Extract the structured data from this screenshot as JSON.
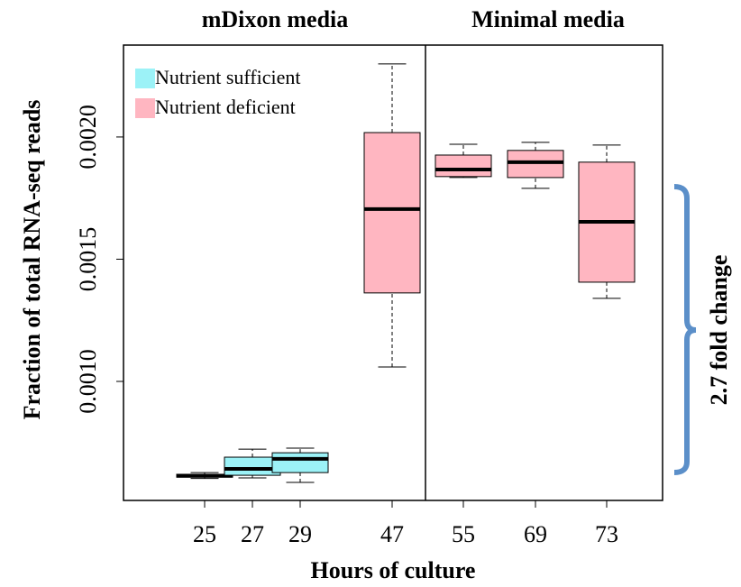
{
  "chart_data": {
    "type": "box",
    "panel_labels": [
      "mDixon media",
      "Minimal media"
    ],
    "x_label": "Hours of culture",
    "y_label": "Fraction of total RNA-seq reads",
    "annotation": "2.7 fold change",
    "categories": [
      "25",
      "27",
      "29",
      "47",
      "55",
      "69",
      "73"
    ],
    "series": [
      {
        "name": "Nutrient sufficient",
        "color": "#9cf2f7",
        "boxes": [
          [
            0.000603,
            0.000608,
            0.000614,
            0.00062,
            0.000627
          ],
          [
            0.000605,
            0.000616,
            0.000642,
            0.00069,
            0.000723
          ],
          [
            0.000587,
            0.000627,
            0.000683,
            0.000708,
            0.000727
          ],
          null,
          null,
          null,
          null
        ]
      },
      {
        "name": "Nutrient deficient",
        "color": "#ffb6c1",
        "boxes": [
          null,
          null,
          null,
          [
            0.001059,
            0.001362,
            0.001705,
            0.002018,
            0.002299
          ],
          [
            0.001834,
            0.001838,
            0.001867,
            0.001926,
            0.00197
          ],
          [
            0.00179,
            0.001834,
            0.001897,
            0.001945,
            0.001978
          ],
          [
            0.00134,
            0.001406,
            0.001653,
            0.001897,
            0.001967
          ]
        ]
      }
    ],
    "ylim": [
      0.000513,
      0.002376
    ],
    "yticks": [
      {
        "value": 0.001,
        "label": "0.0010"
      },
      {
        "value": 0.0015,
        "label": "0.0015"
      },
      {
        "value": 0.002,
        "label": "0.0020"
      }
    ],
    "legend": "top-left"
  }
}
